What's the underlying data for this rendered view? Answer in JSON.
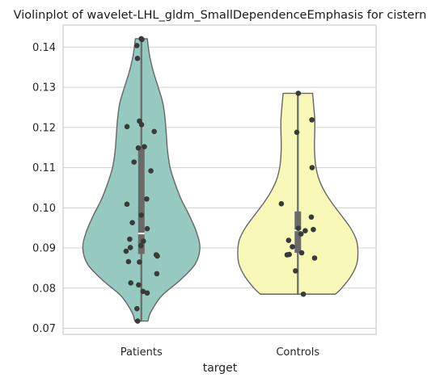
{
  "chart_data": {
    "type": "violin",
    "title": "Violinplot of wavelet-LHL_gldm_SmallDependenceEmphasis for cistern",
    "xlabel": "target",
    "ylabel": "",
    "categories": [
      "Patients",
      "Controls"
    ],
    "ylim": [
      0.0685,
      0.1455
    ],
    "yticks": [
      0.07,
      0.08,
      0.09,
      0.1,
      0.11,
      0.12,
      0.13,
      0.14
    ],
    "ytick_labels": [
      "0.07",
      "0.08",
      "0.09",
      "0.10",
      "0.11",
      "0.12",
      "0.13",
      "0.14"
    ],
    "grid": "horizontal",
    "colors": {
      "Patients": "#96cac1",
      "Controls": "#f8f8b9",
      "outline": "#666666",
      "points": "#3a3a3a",
      "grid": "#d0d0d0",
      "frame": "#cccccc"
    },
    "series": [
      {
        "name": "Patients",
        "min": 0.0718,
        "q1": 0.0885,
        "median": 0.0936,
        "q3": 0.1153,
        "max": 0.1421,
        "density": [
          [
            0.0718,
            0.105
          ],
          [
            0.074,
            0.15
          ],
          [
            0.078,
            0.32
          ],
          [
            0.082,
            0.62
          ],
          [
            0.086,
            0.86
          ],
          [
            0.09,
            0.935
          ],
          [
            0.094,
            0.88
          ],
          [
            0.098,
            0.77
          ],
          [
            0.102,
            0.64
          ],
          [
            0.106,
            0.54
          ],
          [
            0.11,
            0.46
          ],
          [
            0.114,
            0.42
          ],
          [
            0.118,
            0.4
          ],
          [
            0.122,
            0.38
          ],
          [
            0.126,
            0.345
          ],
          [
            0.13,
            0.27
          ],
          [
            0.134,
            0.19
          ],
          [
            0.138,
            0.13
          ],
          [
            0.1421,
            0.095
          ]
        ],
        "points": [
          0.1421,
          0.1419,
          0.1404,
          0.1372,
          0.1216,
          0.1207,
          0.1202,
          0.119,
          0.1152,
          0.1149,
          0.1114,
          0.1092,
          0.1022,
          0.1009,
          0.0982,
          0.0963,
          0.0948,
          0.0922,
          0.0917,
          0.0906,
          0.0901,
          0.0892,
          0.0883,
          0.088,
          0.0866,
          0.0865,
          0.0836,
          0.0813,
          0.0808,
          0.0792,
          0.0788,
          0.0749,
          0.0718
        ]
      },
      {
        "name": "Controls",
        "min": 0.0785,
        "q1": 0.0888,
        "median": 0.0944,
        "q3": 0.0991,
        "max": 0.1285,
        "density": [
          [
            0.0785,
            0.6
          ],
          [
            0.08,
            0.7
          ],
          [
            0.083,
            0.85
          ],
          [
            0.086,
            0.94
          ],
          [
            0.089,
            0.96
          ],
          [
            0.092,
            0.935
          ],
          [
            0.095,
            0.84
          ],
          [
            0.098,
            0.7
          ],
          [
            0.101,
            0.555
          ],
          [
            0.104,
            0.43
          ],
          [
            0.107,
            0.34
          ],
          [
            0.11,
            0.29
          ],
          [
            0.113,
            0.27
          ],
          [
            0.116,
            0.265
          ],
          [
            0.119,
            0.27
          ],
          [
            0.122,
            0.27
          ],
          [
            0.125,
            0.255
          ],
          [
            0.1285,
            0.235
          ]
        ],
        "points": [
          0.1285,
          0.1219,
          0.1188,
          0.11,
          0.101,
          0.0977,
          0.0949,
          0.0946,
          0.0943,
          0.0935,
          0.0919,
          0.0903,
          0.0888,
          0.0884,
          0.0883,
          0.0875,
          0.0843,
          0.0785
        ]
      }
    ]
  }
}
